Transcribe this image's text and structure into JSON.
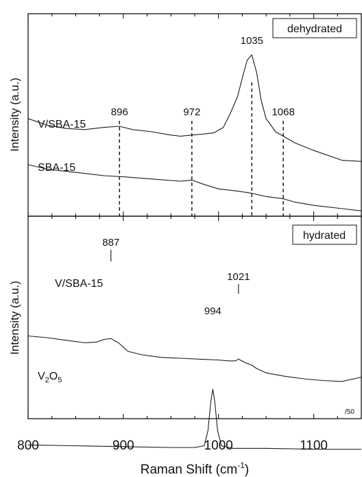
{
  "chart_data": {
    "type": "line",
    "xlabel": "Raman Shift (cm",
    "xlabel_sup": "-1",
    "xlabel_tail": ")",
    "xlim": [
      800,
      1150
    ],
    "xticks": [
      800,
      900,
      1000,
      1100
    ],
    "panels": [
      {
        "tag": "dehydrated",
        "ylabel": "Intensity (a.u.)",
        "series": [
          {
            "name": "V/SBA-15",
            "x": [
              800,
              820,
              840,
              860,
              880,
              896,
              910,
              930,
              950,
              960,
              972,
              985,
              995,
              1005,
              1012,
              1020,
              1025,
              1030,
              1035,
              1040,
              1045,
              1050,
              1060,
              1068,
              1080,
              1100,
              1130,
              1150
            ],
            "y": [
              0.42,
              0.36,
              0.33,
              0.32,
              0.34,
              0.35,
              0.32,
              0.3,
              0.27,
              0.26,
              0.27,
              0.28,
              0.29,
              0.34,
              0.46,
              0.62,
              0.79,
              0.95,
              1.0,
              0.84,
              0.58,
              0.42,
              0.3,
              0.26,
              0.2,
              0.13,
              0.04,
              0.03
            ]
          },
          {
            "name": "SBA-15",
            "x": [
              800,
              820,
              850,
              880,
              900,
              930,
              960,
              972,
              985,
              1000,
              1020,
              1035,
              1050,
              1068,
              1080,
              1100,
              1130,
              1150
            ],
            "y": [
              0.0,
              -0.04,
              -0.07,
              -0.1,
              -0.11,
              -0.13,
              -0.15,
              -0.14,
              -0.18,
              -0.22,
              -0.24,
              -0.26,
              -0.29,
              -0.31,
              -0.34,
              -0.37,
              -0.4,
              -0.42
            ]
          }
        ],
        "peaks": [
          {
            "label": "896",
            "x": 896
          },
          {
            "label": "972",
            "x": 972
          },
          {
            "label": "1035",
            "x": 1035
          },
          {
            "label": "1068",
            "x": 1068
          }
        ]
      },
      {
        "tag": "hydrated",
        "ylabel": "Intensity (a.u.)",
        "scale_note": "/50",
        "series": [
          {
            "name": "V/SBA-15",
            "x": [
              800,
              820,
              840,
              860,
              872,
              880,
              887,
              895,
              905,
              920,
              940,
              960,
              980,
              1000,
              1010,
              1018,
              1021,
              1028,
              1035,
              1040,
              1050,
              1070,
              1090,
              1110,
              1130,
              1150
            ],
            "y": [
              0.62,
              0.6,
              0.57,
              0.54,
              0.55,
              0.58,
              0.59,
              0.54,
              0.44,
              0.4,
              0.37,
              0.36,
              0.35,
              0.34,
              0.33,
              0.33,
              0.35,
              0.31,
              0.28,
              0.24,
              0.19,
              0.15,
              0.12,
              0.1,
              0.09,
              0.14
            ]
          },
          {
            "name": "V2O5",
            "x": [
              800,
              850,
              900,
              950,
              975,
              985,
              989,
              992,
              994,
              996,
              999,
              1003,
              1015,
              1050,
              1100,
              1150
            ],
            "y": [
              -0.65,
              -0.66,
              -0.67,
              -0.68,
              -0.68,
              -0.66,
              -0.48,
              -0.14,
              0.0,
              -0.14,
              -0.48,
              -0.66,
              -0.69,
              -0.69,
              -0.7,
              -0.7
            ]
          }
        ],
        "peaks": [
          {
            "label": "887",
            "x": 887
          },
          {
            "label": "1021",
            "x": 1021
          },
          {
            "label": "994",
            "x": 994
          }
        ]
      }
    ]
  },
  "labels": {
    "v2o5_base": "V",
    "v2o5_sub1": "2",
    "v2o5_mid": "O",
    "v2o5_sub2": "5"
  }
}
